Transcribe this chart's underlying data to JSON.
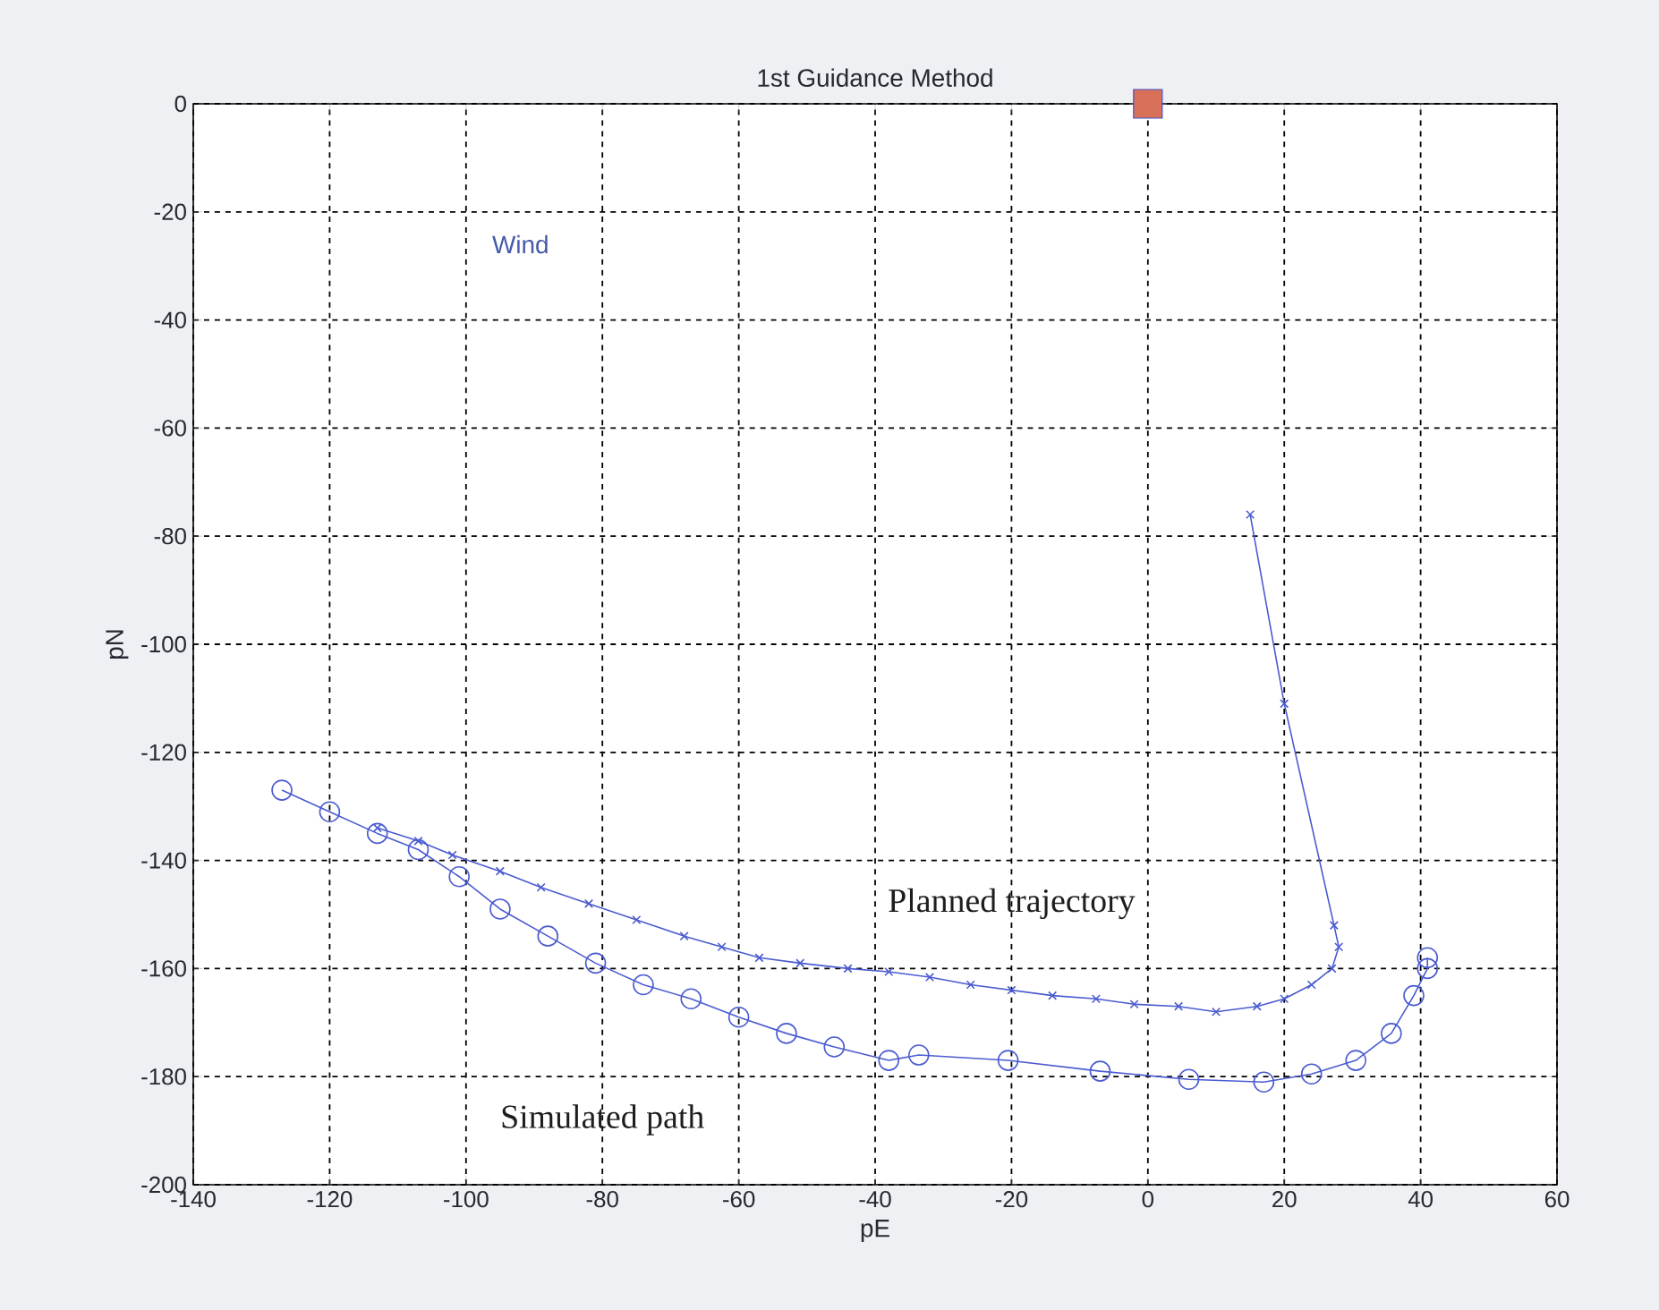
{
  "chart_data": {
    "type": "line",
    "title": "1st Guidance Method",
    "xlabel": "pE",
    "ylabel": "pN",
    "xlim": [
      -140,
      60
    ],
    "ylim": [
      -200,
      0
    ],
    "xticks": [
      -140,
      -120,
      -100,
      -80,
      -60,
      -40,
      -20,
      0,
      20,
      40,
      60
    ],
    "yticks": [
      -200,
      -180,
      -160,
      -140,
      -120,
      -100,
      -80,
      -60,
      -40,
      -20,
      0
    ],
    "grid": true,
    "series": [
      {
        "color": "#4a5bd0",
        "marker": "cross",
        "x": [
          -113,
          -107,
          -102,
          -95,
          -89,
          -82,
          -75,
          -68,
          -62.5,
          -57,
          -51,
          -44,
          -38,
          -32,
          -26,
          -20,
          -14,
          -7.6,
          -2,
          4.5,
          10,
          16,
          20,
          24,
          27,
          28,
          27.3,
          20,
          15
        ],
        "values": [
          -134,
          -136.4,
          -139,
          -142,
          -145,
          -148,
          -151,
          -154,
          -156,
          -158,
          -159,
          -160,
          -160.6,
          -161.6,
          -163,
          -164,
          -165,
          -165.6,
          -166.6,
          -167,
          -168,
          -167,
          -165.6,
          -163,
          -160,
          -156,
          -152,
          -111,
          -76
        ]
      },
      {
        "color": "#4a5bd0",
        "marker": "circle",
        "x": [
          -127,
          -120,
          -113,
          -107,
          -101,
          -95,
          -88,
          -81,
          -74,
          -67,
          -60,
          -53,
          -46,
          -38,
          -33.6,
          -20.5,
          -7,
          6,
          17,
          24,
          30.5,
          35.7,
          39,
          41,
          41
        ],
        "values": [
          -127,
          -131,
          -135,
          -138,
          -143,
          -149,
          -154,
          -159,
          -163,
          -165.6,
          -169,
          -172,
          -174.5,
          -177,
          -176,
          -177,
          -179,
          -180.5,
          -181,
          -179.5,
          -177,
          -172,
          -165,
          -160,
          -158
        ]
      },
      {
        "type": "scatter",
        "color": "#d9705a",
        "marker": "square",
        "x": [
          0
        ],
        "values": [
          0
        ]
      }
    ],
    "annotations": [
      "Wind",
      "Planned trajectory",
      "Simulated path"
    ]
  }
}
